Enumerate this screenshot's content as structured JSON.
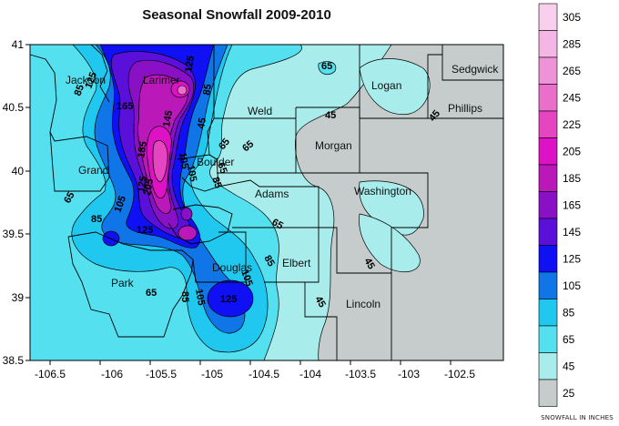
{
  "title": "Seasonal Snowfall 2009-2010",
  "map": {
    "x_ticks": [
      "-106.5",
      "-106",
      "-105.5",
      "-105",
      "-104.5",
      "-104",
      "-103.5",
      "-103",
      "-102.5"
    ],
    "y_ticks": [
      "41",
      "40.5",
      "40",
      "39.5",
      "39",
      "38.5"
    ],
    "counties": [
      "Jackson",
      "Larimer",
      "Weld",
      "Logan",
      "Sedgwick",
      "Phillips",
      "Morgan",
      "Boulder",
      "Grand",
      "Adams",
      "Washington",
      "Elbert",
      "Douglas",
      "Park",
      "Lincoln"
    ],
    "contour_labels": [
      "125",
      "85",
      "165",
      "125",
      "65",
      "45",
      "45",
      "145",
      "85",
      "65",
      "105",
      "185",
      "65",
      "205",
      "105",
      "65",
      "85",
      "125",
      "65",
      "85",
      "45",
      "45",
      "65",
      "105",
      "85",
      "105",
      "45",
      "125",
      "65",
      "85",
      "105",
      "125"
    ]
  },
  "legend": {
    "levels": [
      "305",
      "285",
      "265",
      "245",
      "225",
      "205",
      "185",
      "165",
      "145",
      "125",
      "105",
      "85",
      "65",
      "45",
      "25"
    ],
    "colors": [
      "#f8d0ee",
      "#f4b6e4",
      "#ef93d8",
      "#ea6fcb",
      "#e545c0",
      "#de12c5",
      "#ba18b8",
      "#8a10c5",
      "#5a10d8",
      "#1010f5",
      "#1076e8",
      "#20c8f0",
      "#55e0f0",
      "#a8eceb",
      "#c6cccc"
    ],
    "title": "SNOWFALL IN INCHES"
  }
}
